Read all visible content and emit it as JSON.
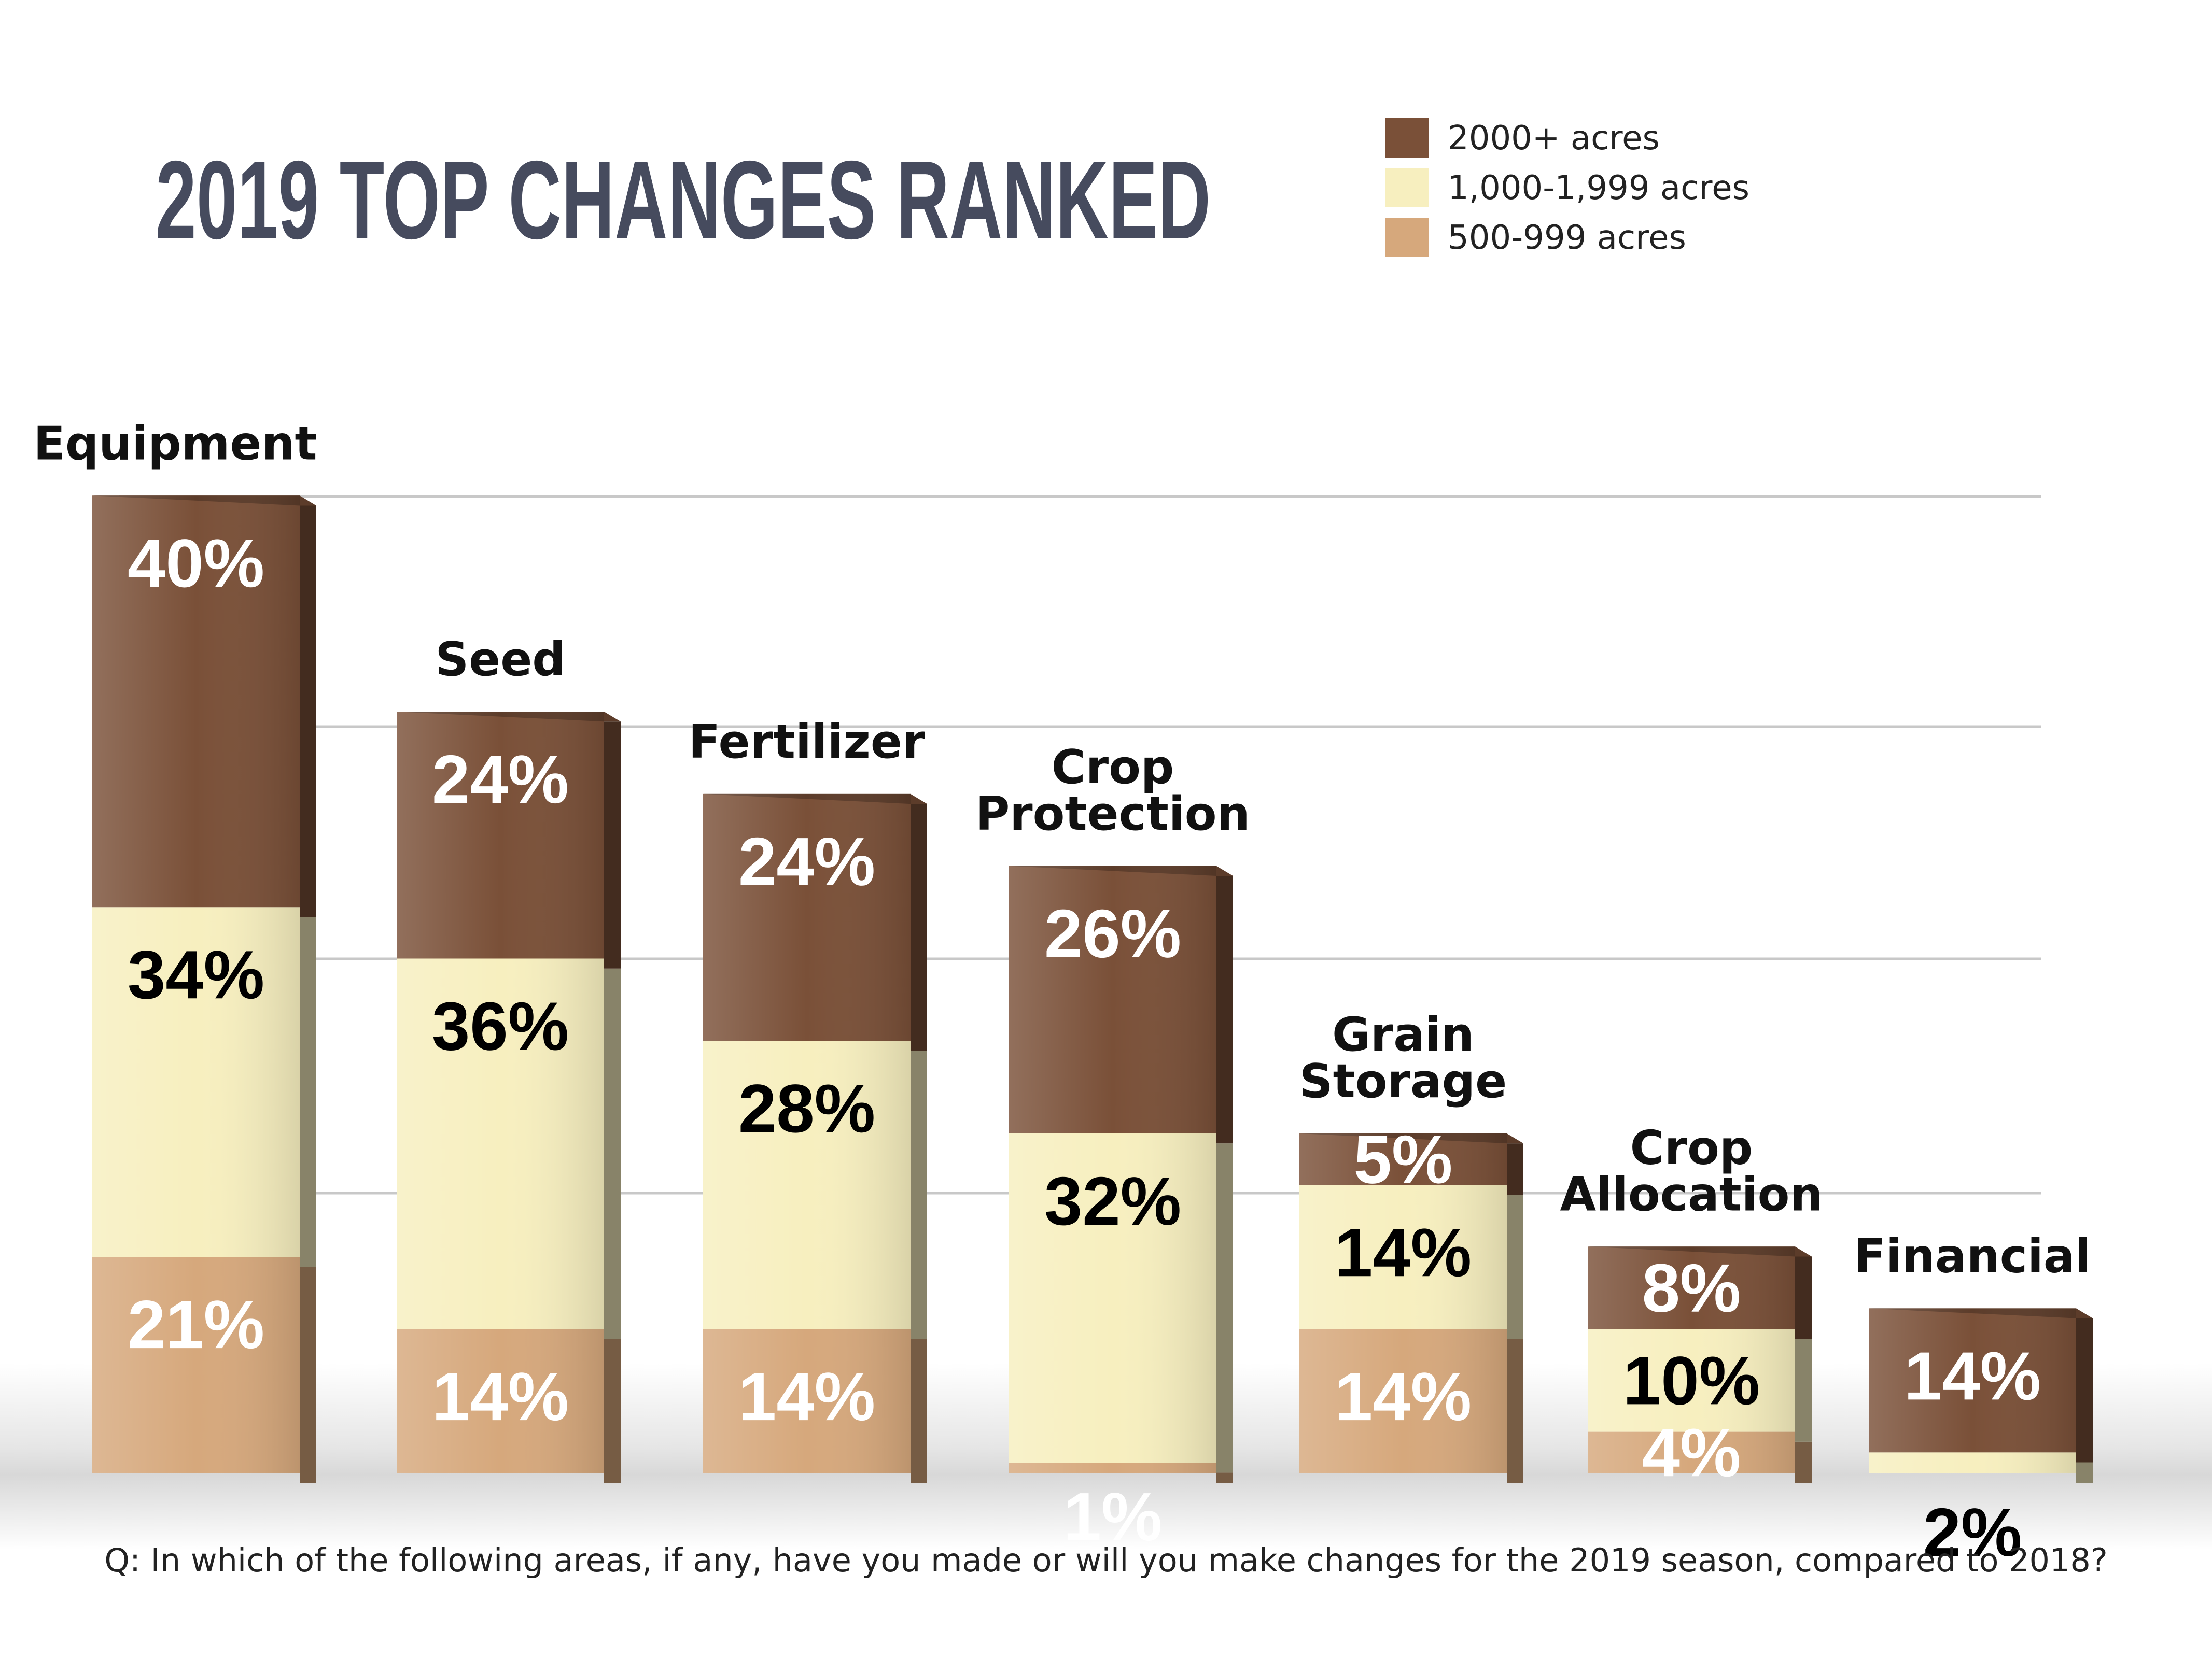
{
  "chart_data": {
    "type": "bar",
    "stacked": true,
    "title": "2019 TOP CHANGES RANKED",
    "categories": [
      [
        "Equipment"
      ],
      [
        "Seed"
      ],
      [
        "Fertilizer"
      ],
      [
        "Crop",
        "Protection"
      ],
      [
        "Grain",
        "Storage"
      ],
      [
        "Crop",
        "Allocation"
      ],
      [
        "Financial"
      ]
    ],
    "series": [
      {
        "name": "500-999 acres",
        "color": "#d6a87c",
        "label_color": "#ffffff",
        "values": [
          21,
          14,
          14,
          1,
          14,
          4,
          0
        ]
      },
      {
        "name": "1,000-1,999 acres",
        "color": "#f7efbf",
        "label_color": "#000000",
        "values": [
          34,
          36,
          28,
          32,
          14,
          10,
          2
        ]
      },
      {
        "name": "2000+ acres",
        "color": "#7a5038",
        "label_color": "#ffffff",
        "values": [
          40,
          24,
          24,
          26,
          5,
          8,
          14
        ]
      }
    ],
    "legend": {
      "position": "top-right",
      "order": [
        "2000+ acres",
        "1,000-1,999 acres",
        "500-999 acres"
      ]
    },
    "grid": true,
    "footnote": "Q: In which of the following areas, if any, have you made or will you make changes for the 2019 season, compared to 2018?"
  }
}
